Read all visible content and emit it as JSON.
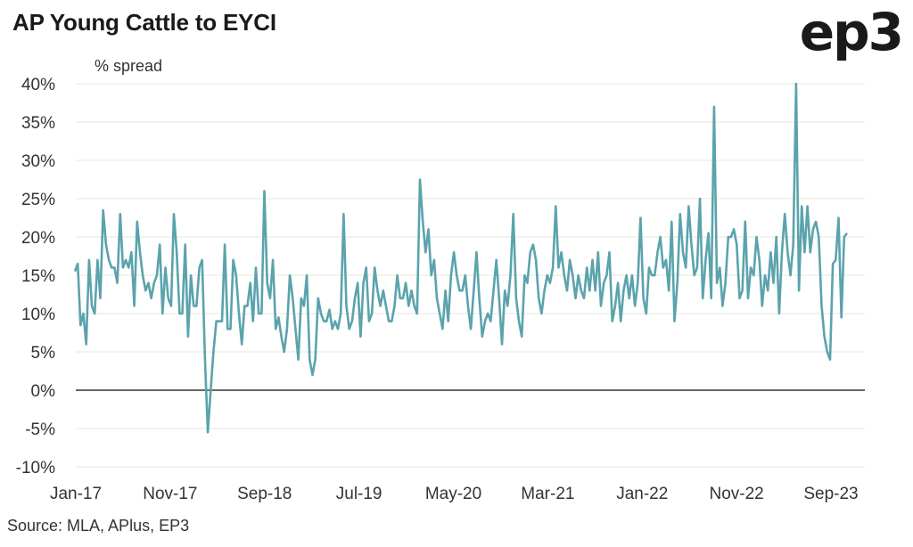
{
  "title": "AP Young Cattle to EYCI",
  "logo_text": "ep3",
  "source": "Source: MLA, APlus, EP3",
  "colors": {
    "series": "#5ba3ad",
    "grid": "#e4e9d6",
    "zero": "#333333"
  },
  "chart_data": {
    "type": "line",
    "title": "AP Young Cattle to EYCI",
    "ylabel": "% spread",
    "xlabel": "",
    "ylim": [
      -10,
      40
    ],
    "yticks": [
      "40%",
      "35%",
      "30%",
      "25%",
      "20%",
      "15%",
      "10%",
      "5%",
      "0%",
      "-5%",
      "-10%"
    ],
    "ytick_values": [
      40,
      35,
      30,
      25,
      20,
      15,
      10,
      5,
      0,
      -5,
      -10
    ],
    "xticks": [
      "Jan-17",
      "Nov-17",
      "Sep-18",
      "Jul-19",
      "May-20",
      "Mar-21",
      "Jan-22",
      "Nov-22",
      "Sep-23"
    ],
    "x_range": [
      "2017-01",
      "2023-10"
    ],
    "grid": true,
    "series": [
      {
        "values": [
          15.5,
          16.5,
          8.5,
          10,
          6,
          17,
          11,
          10,
          17,
          12,
          23.5,
          19,
          17,
          16,
          16,
          14,
          23,
          16,
          17,
          16,
          18,
          11,
          22,
          18,
          15,
          13,
          14,
          12,
          14,
          15,
          19,
          10,
          16,
          12,
          11,
          23,
          18,
          10,
          10,
          19,
          7,
          15,
          11,
          11,
          16,
          17,
          4,
          -5.5,
          0,
          5,
          9,
          9,
          9,
          19,
          8,
          8,
          17,
          15,
          10,
          6,
          11,
          11,
          14,
          9,
          16,
          10,
          10,
          26,
          14,
          12,
          17,
          8,
          9.5,
          7,
          5,
          8,
          15,
          12,
          8,
          4,
          12,
          11,
          15,
          4,
          2,
          4,
          12,
          10,
          9,
          9,
          10.5,
          8,
          9,
          8,
          10,
          23,
          11,
          8,
          9,
          12,
          14,
          7,
          14,
          16,
          9,
          10,
          16,
          13,
          11,
          13,
          11,
          9,
          9,
          11,
          15,
          12,
          12,
          14,
          11,
          13,
          11,
          10,
          27.5,
          22,
          18,
          21,
          15,
          17,
          12,
          10,
          8,
          13,
          9,
          15,
          18,
          15,
          13,
          13,
          15,
          11,
          8,
          13,
          18,
          12,
          7,
          9,
          10,
          9,
          13,
          17,
          12,
          6,
          13,
          11,
          15,
          23,
          12,
          9,
          7,
          15,
          14,
          18,
          19,
          17,
          12,
          10,
          13,
          15,
          14,
          16,
          24,
          16,
          18,
          15,
          13,
          17,
          15,
          12,
          15,
          13,
          12,
          16,
          13,
          17,
          13,
          18,
          11,
          14,
          15,
          18,
          9,
          11,
          14,
          9,
          13,
          15,
          12,
          15,
          11,
          14,
          22.5,
          12,
          10,
          16,
          15,
          15,
          18,
          20,
          16,
          17,
          13,
          22,
          9,
          14,
          23,
          18,
          16,
          24,
          19,
          15,
          16,
          25,
          12,
          17,
          20.5,
          12,
          37,
          14,
          16,
          11,
          14,
          20,
          20,
          21,
          19,
          12,
          13,
          22,
          12,
          16,
          15,
          20,
          17,
          11,
          15,
          13,
          18,
          14,
          20,
          10,
          18,
          23,
          18,
          15,
          19,
          40,
          13,
          24,
          18,
          24,
          18,
          21,
          22,
          20,
          11,
          7,
          5,
          4,
          16.5,
          17,
          22.5,
          9.5,
          20,
          20.5
        ]
      }
    ]
  }
}
